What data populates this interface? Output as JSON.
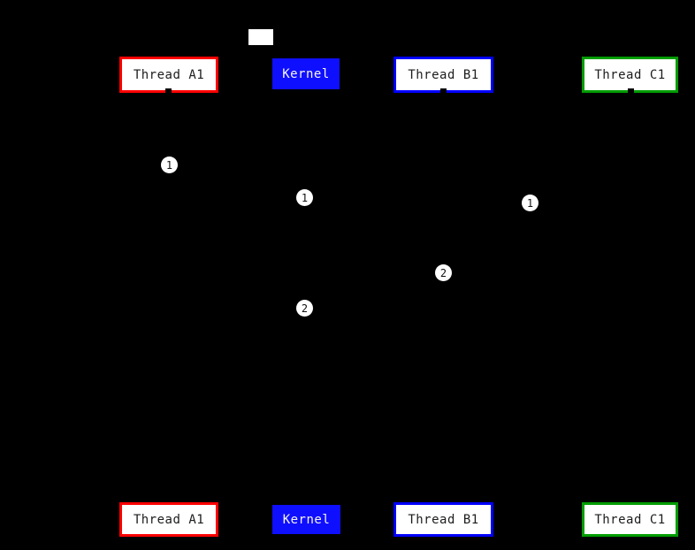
{
  "diagram": {
    "type": "sequence-diagram",
    "background_color": "#000000",
    "note": {
      "text": ""
    },
    "colors": {
      "thread_a1_border": "#ff0000",
      "thread_b1_border": "#0000ff",
      "thread_c1_border": "#009c00",
      "kernel_fill": "#0f0fff",
      "entity_fill": "#ffffff",
      "entity_text": "#1c1c1c",
      "kernel_text": "#f5f5f5",
      "marker_fill": "#ffffff",
      "marker_text": "#111111"
    },
    "entities": [
      {
        "label": "Thread A1"
      },
      {
        "label": "Kernel"
      },
      {
        "label": "Thread B1"
      },
      {
        "label": "Thread C1"
      }
    ],
    "markers": [
      {
        "label": "1"
      },
      {
        "label": "1"
      },
      {
        "label": "1"
      },
      {
        "label": "2"
      },
      {
        "label": "2"
      }
    ]
  }
}
